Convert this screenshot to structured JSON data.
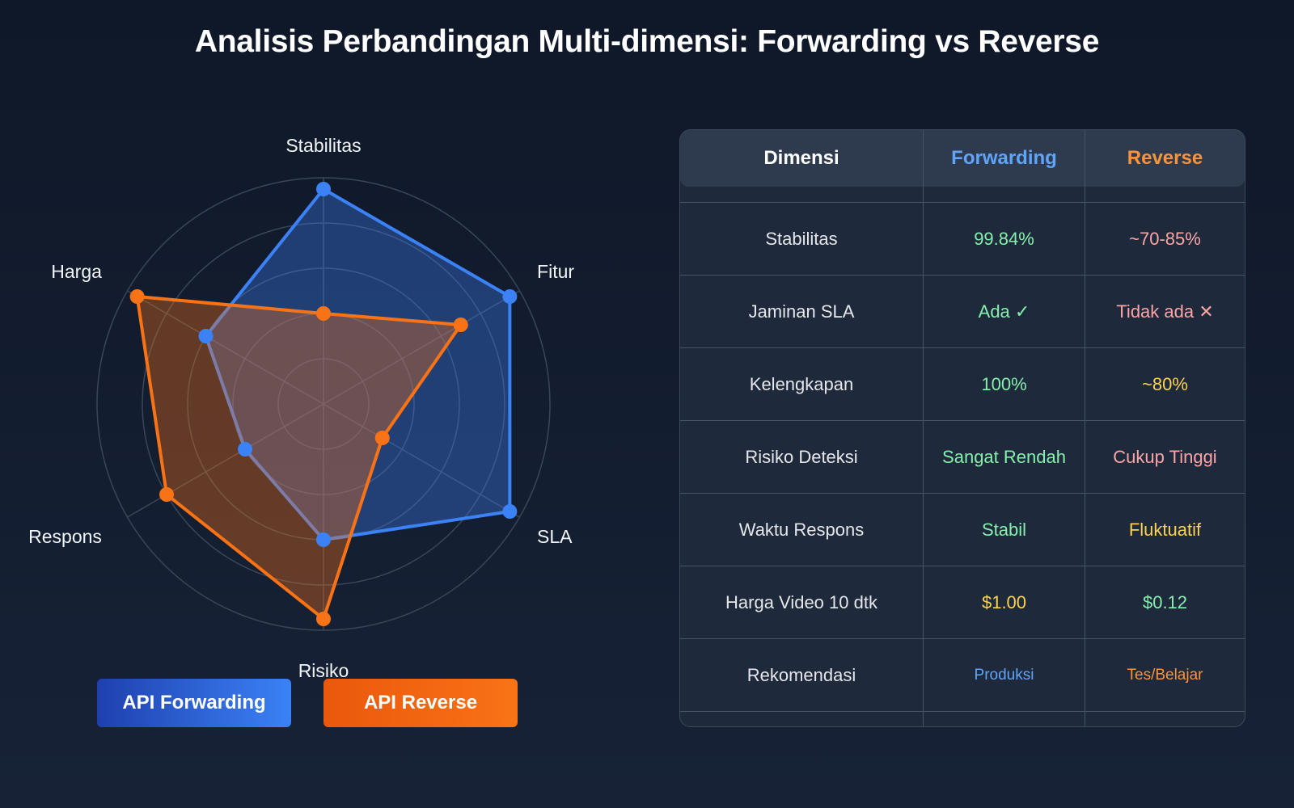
{
  "title": "Analisis Perbandingan Multi-dimensi: Forwarding vs Reverse",
  "colors": {
    "forwarding": "#3b82f6",
    "reverse": "#f97316",
    "green": "#86efac",
    "red": "#fca5a5",
    "yellow": "#fcd34d",
    "blue_text": "#60a5fa",
    "orange_text": "#fb923c"
  },
  "chart_data": {
    "type": "radar",
    "axes": [
      "Stabilitas",
      "Fitur",
      "SLA",
      "Risiko",
      "Respons",
      "Harga"
    ],
    "rmax": 100,
    "rings": [
      20,
      40,
      60,
      80,
      100
    ],
    "grid": true,
    "legend_position": "bottom",
    "series": [
      {
        "name": "API Forwarding",
        "values": [
          95,
          95,
          95,
          60,
          40,
          60
        ]
      },
      {
        "name": "API Reverse",
        "values": [
          40,
          70,
          30,
          95,
          80,
          95
        ]
      }
    ]
  },
  "table": {
    "headers": [
      "Dimensi",
      "Forwarding",
      "Reverse"
    ],
    "rows": [
      {
        "dim": "Stabilitas",
        "fwd": "99.84%",
        "rev": "~70-85%",
        "fwd_color": "#86efac",
        "rev_color": "#fca5a5"
      },
      {
        "dim": "Jaminan SLA",
        "fwd": "Ada ✓",
        "rev": "Tidak ada ✕",
        "fwd_color": "#86efac",
        "rev_color": "#fca5a5"
      },
      {
        "dim": "Kelengkapan",
        "fwd": "100%",
        "rev": "~80%",
        "fwd_color": "#86efac",
        "rev_color": "#fcd34d"
      },
      {
        "dim": "Risiko Deteksi",
        "fwd": "Sangat Rendah",
        "rev": "Cukup Tinggi",
        "fwd_color": "#86efac",
        "rev_color": "#fca5a5"
      },
      {
        "dim": "Waktu Respons",
        "fwd": "Stabil",
        "rev": "Fluktuatif",
        "fwd_color": "#86efac",
        "rev_color": "#fcd34d"
      },
      {
        "dim": "Harga Video 10 dtk",
        "fwd": "$1.00",
        "rev": "$0.12",
        "fwd_color": "#fcd34d",
        "rev_color": "#86efac"
      },
      {
        "dim": "Rekomendasi",
        "fwd": "Produksi",
        "rev": "Tes/Belajar",
        "fwd_color": "#60a5fa",
        "rev_color": "#fb923c"
      }
    ]
  }
}
